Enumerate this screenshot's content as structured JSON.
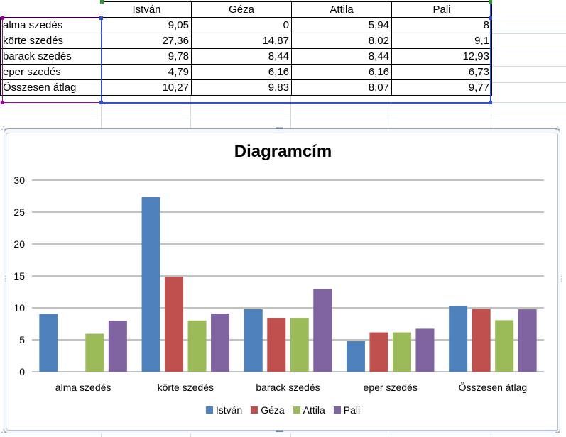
{
  "table": {
    "headers": [
      "",
      "István",
      "Géza",
      "Attila",
      "Pali"
    ],
    "rows": [
      {
        "label": "alma szedés",
        "values": [
          "9,05",
          "0",
          "5,94",
          "8"
        ]
      },
      {
        "label": "körte szedés",
        "values": [
          "27,36",
          "14,87",
          "8,02",
          "9,1"
        ]
      },
      {
        "label": "barack szedés",
        "values": [
          "9,78",
          "8,44",
          "8,44",
          "12,93"
        ]
      },
      {
        "label": "eper szedés",
        "values": [
          "4,79",
          "6,16",
          "6,16",
          "6,73"
        ]
      },
      {
        "label": "Összesen átlag",
        "values": [
          "10,27",
          "9,83",
          "8,07",
          "9,77"
        ]
      }
    ]
  },
  "colors": {
    "istvan": "#4f81bd",
    "geza": "#c0504d",
    "attila": "#9bbb59",
    "pali": "#8064a2"
  },
  "chart_data": {
    "type": "bar",
    "title": "Diagramcím",
    "xlabel": "",
    "ylabel": "",
    "categories": [
      "alma szedés",
      "körte szedés",
      "barack szedés",
      "eper szedés",
      "Összesen átlag"
    ],
    "series": [
      {
        "name": "István",
        "values": [
          9.05,
          27.36,
          9.78,
          4.79,
          10.27
        ],
        "color": "#4f81bd"
      },
      {
        "name": "Géza",
        "values": [
          0,
          14.87,
          8.44,
          6.16,
          9.83
        ],
        "color": "#c0504d"
      },
      {
        "name": "Attila",
        "values": [
          5.94,
          8.02,
          8.44,
          6.16,
          8.07
        ],
        "color": "#9bbb59"
      },
      {
        "name": "Pali",
        "values": [
          8,
          9.1,
          12.93,
          6.73,
          9.77
        ],
        "color": "#8064a2"
      }
    ],
    "ylim": [
      0,
      30
    ],
    "yticks": [
      0,
      5,
      10,
      15,
      20,
      25,
      30
    ],
    "grid": true,
    "legend_position": "bottom"
  }
}
